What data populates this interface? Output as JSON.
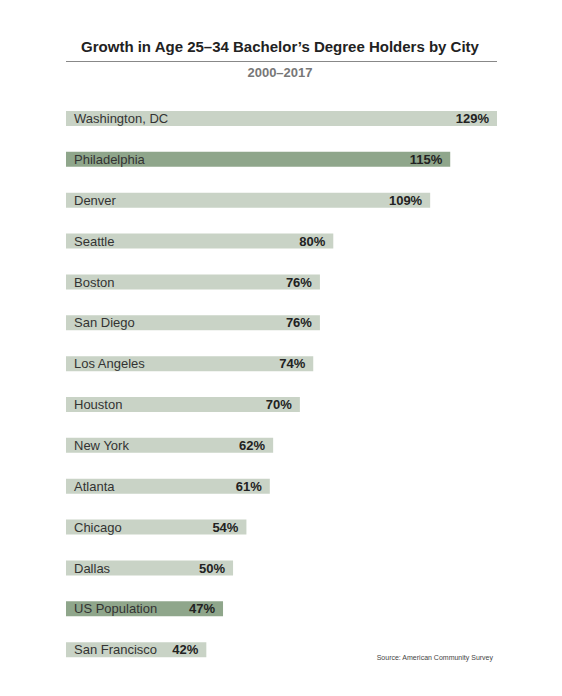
{
  "chart_data": {
    "type": "bar",
    "orientation": "horizontal",
    "title": "Growth in Age 25–34 Bachelor’s Degree Holders by City",
    "subtitle": "2000–2017",
    "annotations": [
      "Source: American Community Survey"
    ],
    "categories": [
      "Washington, DC",
      "Philadelphia",
      "Denver",
      "Seattle",
      "Boston",
      "San Diego",
      "Los Angeles",
      "Houston",
      "New York",
      "Atlanta",
      "Chicago",
      "Dallas",
      "US Population",
      "San Francisco"
    ],
    "values": [
      129,
      115,
      109,
      80,
      76,
      76,
      74,
      70,
      62,
      61,
      54,
      50,
      47,
      42
    ],
    "value_labels": [
      "129%",
      "115%",
      "109%",
      "80%",
      "76%",
      "76%",
      "74%",
      "70%",
      "62%",
      "61%",
      "54%",
      "50%",
      "47%",
      "42%"
    ],
    "colors": [
      "#c9d3c6",
      "#8fa68b",
      "#c9d3c6",
      "#c9d3c6",
      "#c9d3c6",
      "#c9d3c6",
      "#c9d3c6",
      "#c9d3c6",
      "#c9d3c6",
      "#c9d3c6",
      "#c9d3c6",
      "#c9d3c6",
      "#8fa68b",
      "#c9d3c6"
    ],
    "xlim": [
      0,
      129
    ],
    "data_labels": true,
    "tick_labels": false,
    "grid": false
  }
}
